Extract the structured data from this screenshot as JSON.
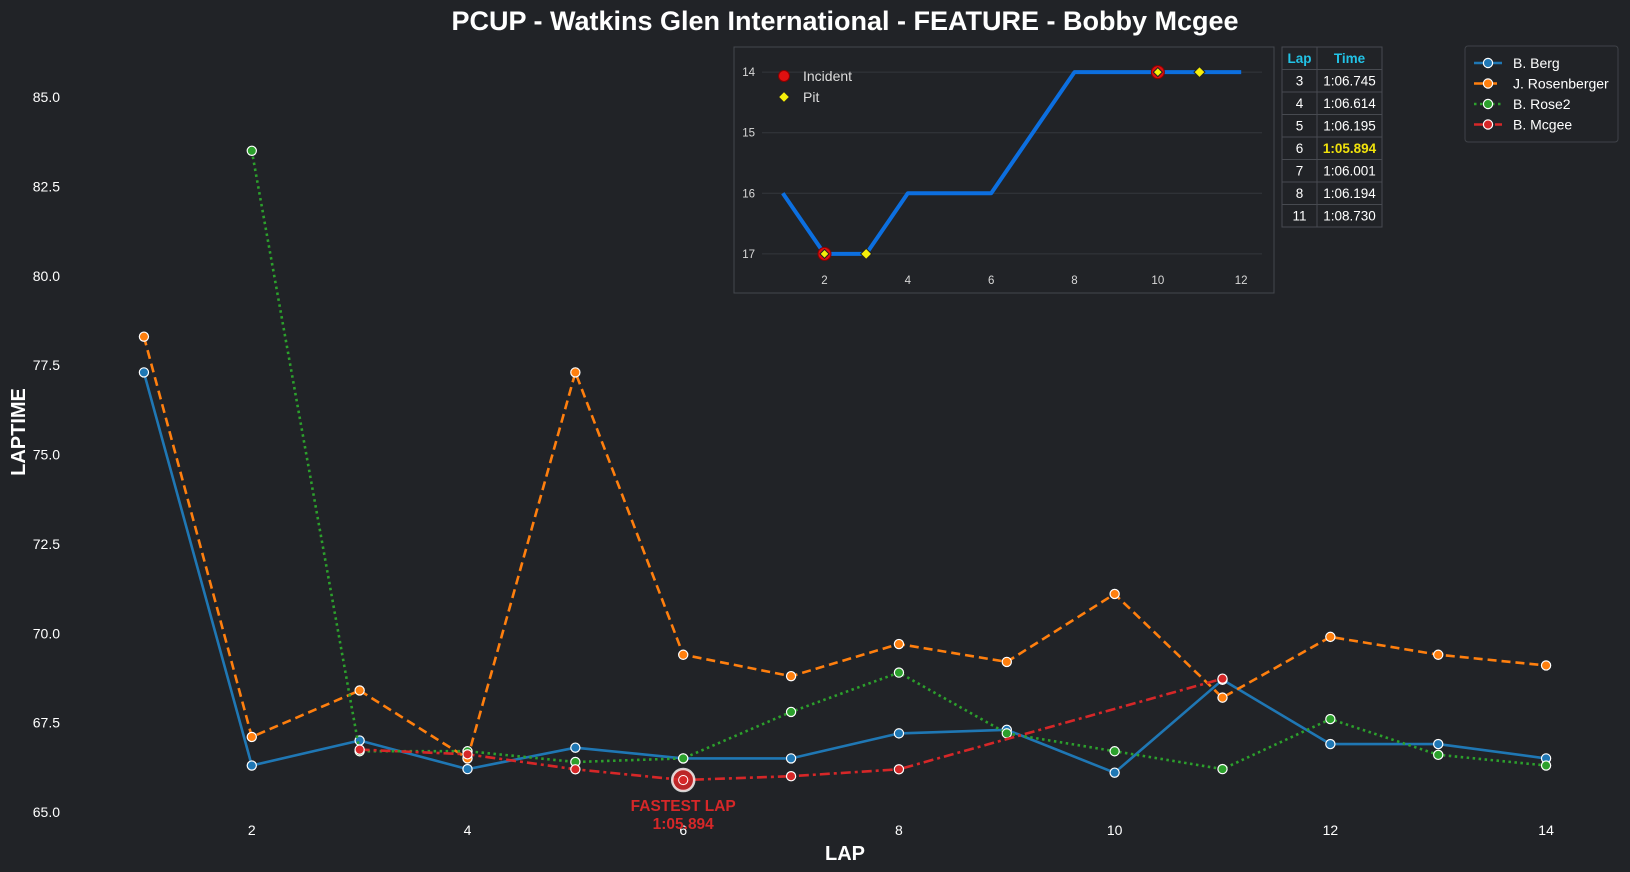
{
  "chart_data": {
    "type": "line",
    "title": "PCUP - Watkins Glen International - FEATURE - Bobby Mcgee",
    "xlabel": "LAP",
    "ylabel": "LAPTIME",
    "xlim": [
      0.5,
      14.5
    ],
    "ylim": [
      65.0,
      86.6
    ],
    "xticks": [
      2,
      4,
      6,
      8,
      10,
      12,
      14
    ],
    "yticks": [
      65.0,
      67.5,
      70.0,
      72.5,
      75.0,
      77.5,
      80.0,
      82.5,
      85.0
    ],
    "ytick_labels": [
      "65.0",
      "67.5",
      "70.0",
      "72.5",
      "75.0",
      "77.5",
      "80.0",
      "82.5",
      "85.0"
    ],
    "grid": false,
    "legend_position": "top-right",
    "series": [
      {
        "name": "B. Berg",
        "color": "#1f77b4",
        "dash": "solid",
        "x": [
          1,
          2,
          3,
          4,
          5,
          6,
          7,
          8,
          9,
          10,
          11,
          12,
          13,
          14
        ],
        "y": [
          77.3,
          66.3,
          67.0,
          66.2,
          66.8,
          66.5,
          66.5,
          67.2,
          67.3,
          66.1,
          68.7,
          66.9,
          66.9,
          66.5
        ]
      },
      {
        "name": "J. Rosenberger",
        "color": "#ff7f0e",
        "dash": "dashed",
        "x": [
          1,
          2,
          3,
          4,
          5,
          6,
          7,
          8,
          9,
          10,
          11,
          12,
          13,
          14
        ],
        "y": [
          78.3,
          67.1,
          68.4,
          66.5,
          77.3,
          69.4,
          68.8,
          69.7,
          69.2,
          71.1,
          68.2,
          69.9,
          69.4,
          69.1
        ]
      },
      {
        "name": "B. Rose2",
        "color": "#2ca02c",
        "dash": "dotted",
        "x": [
          2,
          3,
          4,
          5,
          6,
          7,
          8,
          9,
          10,
          11,
          12,
          13,
          14
        ],
        "y": [
          83.5,
          66.7,
          66.7,
          66.4,
          66.5,
          67.8,
          68.9,
          67.2,
          66.7,
          66.2,
          67.6,
          66.6,
          66.3
        ]
      },
      {
        "name": "B. Mcgee",
        "color": "#d62728",
        "dash": "dashdot",
        "x": [
          3,
          4,
          5,
          6,
          7,
          8,
          11
        ],
        "y": [
          66.745,
          66.614,
          66.195,
          65.894,
          66.001,
          66.194,
          68.73
        ]
      }
    ],
    "annotation": {
      "label": "FASTEST LAP",
      "value": "1:05.894",
      "x": 6,
      "y": 65.894
    },
    "inset": {
      "type": "line",
      "x": [
        1,
        2,
        3,
        4,
        5,
        6,
        7,
        8,
        9,
        10,
        11,
        12
      ],
      "y": [
        16,
        17,
        17,
        16,
        16,
        16,
        15,
        14,
        14,
        14,
        14,
        14
      ],
      "ylim": [
        17.2,
        13.8
      ],
      "xlim": [
        0.5,
        12.5
      ],
      "xticks": [
        2,
        4,
        6,
        8,
        10,
        12
      ],
      "yticks": [
        14,
        15,
        16,
        17
      ],
      "color": "#0c6fe0",
      "incidents": [
        2,
        10
      ],
      "pits": [
        3,
        11
      ],
      "legend": {
        "incident": "Incident",
        "pit": "Pit"
      }
    },
    "laps_table": {
      "headers": [
        "Lap",
        "Time"
      ],
      "rows": [
        [
          "3",
          "1:06.745"
        ],
        [
          "4",
          "1:06.614"
        ],
        [
          "5",
          "1:06.195"
        ],
        [
          "6",
          "1:05.894"
        ],
        [
          "7",
          "1:06.001"
        ],
        [
          "8",
          "1:06.194"
        ],
        [
          "11",
          "1:08.730"
        ]
      ],
      "highlight_row": 3
    }
  }
}
